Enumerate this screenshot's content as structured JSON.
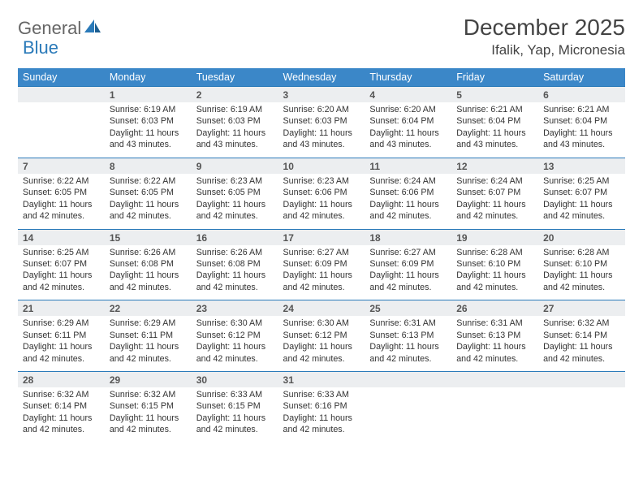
{
  "logo": {
    "part1": "General",
    "part2": "Blue"
  },
  "header": {
    "month_title": "December 2025",
    "location": "Ifalik, Yap, Micronesia"
  },
  "colors": {
    "header_bg": "#3b87c8",
    "header_text": "#ffffff",
    "daynum_bg": "#eceef0",
    "week_border": "#2a7ab9",
    "body_text": "#333333",
    "logo_gray": "#666666",
    "logo_blue": "#2a7ab9"
  },
  "day_names": [
    "Sunday",
    "Monday",
    "Tuesday",
    "Wednesday",
    "Thursday",
    "Friday",
    "Saturday"
  ],
  "weeks": [
    [
      {
        "day": "",
        "sunrise": "",
        "sunset": "",
        "daylight": ""
      },
      {
        "day": "1",
        "sunrise": "Sunrise: 6:19 AM",
        "sunset": "Sunset: 6:03 PM",
        "daylight": "Daylight: 11 hours and 43 minutes."
      },
      {
        "day": "2",
        "sunrise": "Sunrise: 6:19 AM",
        "sunset": "Sunset: 6:03 PM",
        "daylight": "Daylight: 11 hours and 43 minutes."
      },
      {
        "day": "3",
        "sunrise": "Sunrise: 6:20 AM",
        "sunset": "Sunset: 6:03 PM",
        "daylight": "Daylight: 11 hours and 43 minutes."
      },
      {
        "day": "4",
        "sunrise": "Sunrise: 6:20 AM",
        "sunset": "Sunset: 6:04 PM",
        "daylight": "Daylight: 11 hours and 43 minutes."
      },
      {
        "day": "5",
        "sunrise": "Sunrise: 6:21 AM",
        "sunset": "Sunset: 6:04 PM",
        "daylight": "Daylight: 11 hours and 43 minutes."
      },
      {
        "day": "6",
        "sunrise": "Sunrise: 6:21 AM",
        "sunset": "Sunset: 6:04 PM",
        "daylight": "Daylight: 11 hours and 43 minutes."
      }
    ],
    [
      {
        "day": "7",
        "sunrise": "Sunrise: 6:22 AM",
        "sunset": "Sunset: 6:05 PM",
        "daylight": "Daylight: 11 hours and 42 minutes."
      },
      {
        "day": "8",
        "sunrise": "Sunrise: 6:22 AM",
        "sunset": "Sunset: 6:05 PM",
        "daylight": "Daylight: 11 hours and 42 minutes."
      },
      {
        "day": "9",
        "sunrise": "Sunrise: 6:23 AM",
        "sunset": "Sunset: 6:05 PM",
        "daylight": "Daylight: 11 hours and 42 minutes."
      },
      {
        "day": "10",
        "sunrise": "Sunrise: 6:23 AM",
        "sunset": "Sunset: 6:06 PM",
        "daylight": "Daylight: 11 hours and 42 minutes."
      },
      {
        "day": "11",
        "sunrise": "Sunrise: 6:24 AM",
        "sunset": "Sunset: 6:06 PM",
        "daylight": "Daylight: 11 hours and 42 minutes."
      },
      {
        "day": "12",
        "sunrise": "Sunrise: 6:24 AM",
        "sunset": "Sunset: 6:07 PM",
        "daylight": "Daylight: 11 hours and 42 minutes."
      },
      {
        "day": "13",
        "sunrise": "Sunrise: 6:25 AM",
        "sunset": "Sunset: 6:07 PM",
        "daylight": "Daylight: 11 hours and 42 minutes."
      }
    ],
    [
      {
        "day": "14",
        "sunrise": "Sunrise: 6:25 AM",
        "sunset": "Sunset: 6:07 PM",
        "daylight": "Daylight: 11 hours and 42 minutes."
      },
      {
        "day": "15",
        "sunrise": "Sunrise: 6:26 AM",
        "sunset": "Sunset: 6:08 PM",
        "daylight": "Daylight: 11 hours and 42 minutes."
      },
      {
        "day": "16",
        "sunrise": "Sunrise: 6:26 AM",
        "sunset": "Sunset: 6:08 PM",
        "daylight": "Daylight: 11 hours and 42 minutes."
      },
      {
        "day": "17",
        "sunrise": "Sunrise: 6:27 AM",
        "sunset": "Sunset: 6:09 PM",
        "daylight": "Daylight: 11 hours and 42 minutes."
      },
      {
        "day": "18",
        "sunrise": "Sunrise: 6:27 AM",
        "sunset": "Sunset: 6:09 PM",
        "daylight": "Daylight: 11 hours and 42 minutes."
      },
      {
        "day": "19",
        "sunrise": "Sunrise: 6:28 AM",
        "sunset": "Sunset: 6:10 PM",
        "daylight": "Daylight: 11 hours and 42 minutes."
      },
      {
        "day": "20",
        "sunrise": "Sunrise: 6:28 AM",
        "sunset": "Sunset: 6:10 PM",
        "daylight": "Daylight: 11 hours and 42 minutes."
      }
    ],
    [
      {
        "day": "21",
        "sunrise": "Sunrise: 6:29 AM",
        "sunset": "Sunset: 6:11 PM",
        "daylight": "Daylight: 11 hours and 42 minutes."
      },
      {
        "day": "22",
        "sunrise": "Sunrise: 6:29 AM",
        "sunset": "Sunset: 6:11 PM",
        "daylight": "Daylight: 11 hours and 42 minutes."
      },
      {
        "day": "23",
        "sunrise": "Sunrise: 6:30 AM",
        "sunset": "Sunset: 6:12 PM",
        "daylight": "Daylight: 11 hours and 42 minutes."
      },
      {
        "day": "24",
        "sunrise": "Sunrise: 6:30 AM",
        "sunset": "Sunset: 6:12 PM",
        "daylight": "Daylight: 11 hours and 42 minutes."
      },
      {
        "day": "25",
        "sunrise": "Sunrise: 6:31 AM",
        "sunset": "Sunset: 6:13 PM",
        "daylight": "Daylight: 11 hours and 42 minutes."
      },
      {
        "day": "26",
        "sunrise": "Sunrise: 6:31 AM",
        "sunset": "Sunset: 6:13 PM",
        "daylight": "Daylight: 11 hours and 42 minutes."
      },
      {
        "day": "27",
        "sunrise": "Sunrise: 6:32 AM",
        "sunset": "Sunset: 6:14 PM",
        "daylight": "Daylight: 11 hours and 42 minutes."
      }
    ],
    [
      {
        "day": "28",
        "sunrise": "Sunrise: 6:32 AM",
        "sunset": "Sunset: 6:14 PM",
        "daylight": "Daylight: 11 hours and 42 minutes."
      },
      {
        "day": "29",
        "sunrise": "Sunrise: 6:32 AM",
        "sunset": "Sunset: 6:15 PM",
        "daylight": "Daylight: 11 hours and 42 minutes."
      },
      {
        "day": "30",
        "sunrise": "Sunrise: 6:33 AM",
        "sunset": "Sunset: 6:15 PM",
        "daylight": "Daylight: 11 hours and 42 minutes."
      },
      {
        "day": "31",
        "sunrise": "Sunrise: 6:33 AM",
        "sunset": "Sunset: 6:16 PM",
        "daylight": "Daylight: 11 hours and 42 minutes."
      },
      {
        "day": "",
        "sunrise": "",
        "sunset": "",
        "daylight": ""
      },
      {
        "day": "",
        "sunrise": "",
        "sunset": "",
        "daylight": ""
      },
      {
        "day": "",
        "sunrise": "",
        "sunset": "",
        "daylight": ""
      }
    ]
  ]
}
